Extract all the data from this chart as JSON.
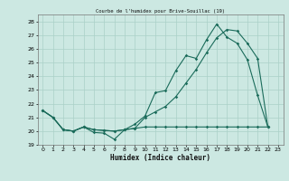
{
  "title": "Courbe de l'humidex pour Brive-Souillac (19)",
  "xlabel": "Humidex (Indice chaleur)",
  "background_color": "#cce8e2",
  "grid_color": "#aad0c8",
  "line_color": "#1a6b5a",
  "xlim": [
    -0.5,
    23.5
  ],
  "ylim": [
    19,
    28.5
  ],
  "yticks": [
    19,
    20,
    21,
    22,
    23,
    24,
    25,
    26,
    27,
    28
  ],
  "xticks": [
    0,
    1,
    2,
    3,
    4,
    5,
    6,
    7,
    8,
    9,
    10,
    11,
    12,
    13,
    14,
    15,
    16,
    17,
    18,
    19,
    20,
    21,
    22,
    23
  ],
  "series1_x": [
    0,
    1,
    2,
    3,
    4,
    5,
    6,
    7,
    8,
    9,
    10,
    11,
    12,
    13,
    14,
    15,
    16,
    17,
    18,
    19,
    20,
    21,
    22
  ],
  "series1_y": [
    21.5,
    21.0,
    20.1,
    20.0,
    20.3,
    19.9,
    19.85,
    19.4,
    20.1,
    20.5,
    21.1,
    22.8,
    22.95,
    24.4,
    25.5,
    25.3,
    26.65,
    27.8,
    26.85,
    26.4,
    25.2,
    22.6,
    20.3
  ],
  "series2_x": [
    0,
    1,
    2,
    3,
    4,
    5,
    6,
    7,
    8,
    9,
    10,
    11,
    12,
    13,
    14,
    15,
    16,
    17,
    18,
    19,
    20,
    21,
    22
  ],
  "series2_y": [
    21.5,
    21.0,
    20.1,
    20.0,
    20.3,
    20.1,
    20.05,
    20.0,
    20.1,
    20.2,
    21.0,
    21.4,
    21.8,
    22.5,
    23.5,
    24.5,
    25.7,
    26.8,
    27.4,
    27.3,
    26.4,
    25.3,
    20.3
  ],
  "series3_x": [
    0,
    1,
    2,
    3,
    4,
    5,
    6,
    7,
    8,
    9,
    10,
    11,
    12,
    13,
    14,
    15,
    16,
    17,
    18,
    19,
    20,
    21,
    22
  ],
  "series3_y": [
    21.5,
    21.0,
    20.1,
    20.0,
    20.3,
    20.1,
    20.05,
    20.0,
    20.1,
    20.2,
    20.3,
    20.3,
    20.3,
    20.3,
    20.3,
    20.3,
    20.3,
    20.3,
    20.3,
    20.3,
    20.3,
    20.3,
    20.3
  ]
}
